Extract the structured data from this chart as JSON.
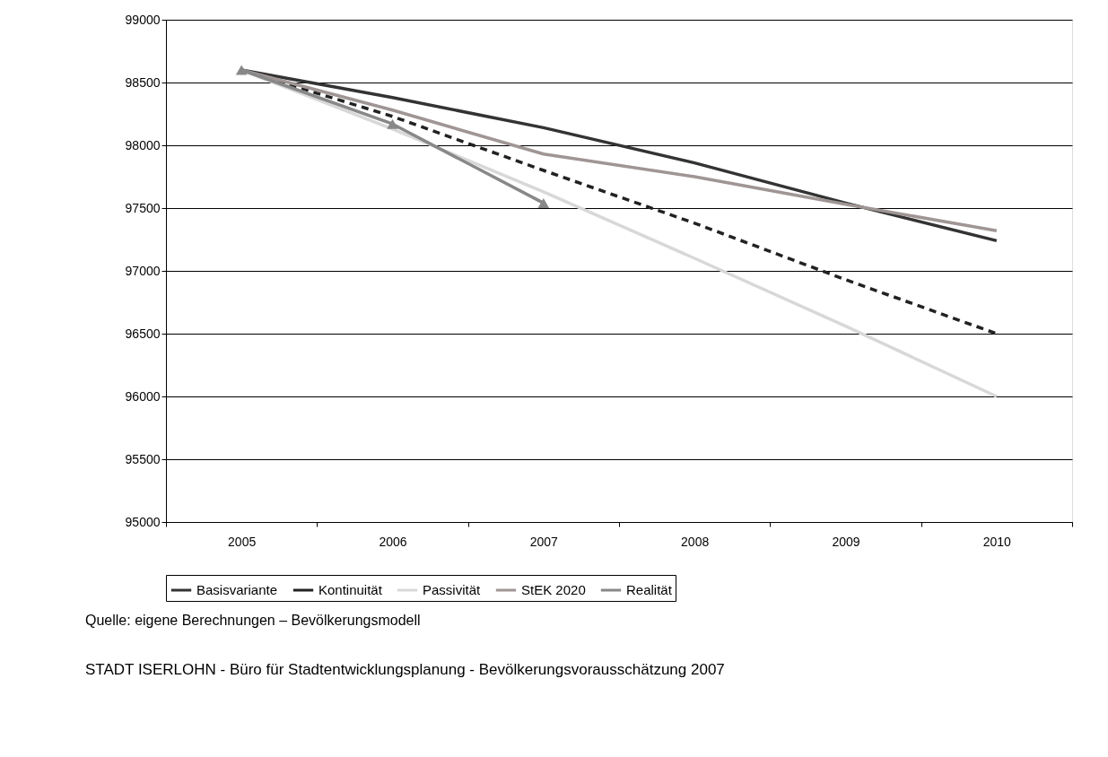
{
  "chart_data": {
    "type": "line",
    "categories": [
      "2005",
      "2006",
      "2007",
      "2008",
      "2009",
      "2010"
    ],
    "series": [
      {
        "name": "Basisvariante",
        "color": "#333333",
        "line_style": "solid",
        "marker": "none",
        "values": [
          98600,
          98380,
          98140,
          97860,
          97540,
          97240
        ]
      },
      {
        "name": "Kontinuität",
        "color": "#222222",
        "line_style": "dashed",
        "marker": "none",
        "values": [
          98600,
          98230,
          97800,
          97380,
          96930,
          96500
        ]
      },
      {
        "name": "Passivität",
        "color": "#d8d8d8",
        "line_style": "solid",
        "marker": "none",
        "values": [
          98600,
          98130,
          97630,
          97100,
          96560,
          96000
        ]
      },
      {
        "name": "StEK 2020",
        "color": "#a09595",
        "line_style": "solid",
        "marker": "none",
        "values": [
          98600,
          98280,
          97930,
          97750,
          97530,
          97320
        ]
      },
      {
        "name": "Realität",
        "color": "#888888",
        "line_style": "solid",
        "marker": "triangle",
        "values": [
          98600,
          98170,
          97540,
          null,
          null,
          null
        ]
      }
    ],
    "ylim": [
      95000,
      99000
    ],
    "yticks": [
      95000,
      95500,
      96000,
      96500,
      97000,
      97500,
      98000,
      98500,
      99000
    ],
    "grid": "y",
    "legend": "bottom",
    "annotations": [
      "Quelle: eigene Berechnungen – Bevölkerungsmodell",
      "STADT ISERLOHN - Büro für Stadtentwicklungsplanung - Bevölkerungsvorausschätzung 2007"
    ]
  }
}
